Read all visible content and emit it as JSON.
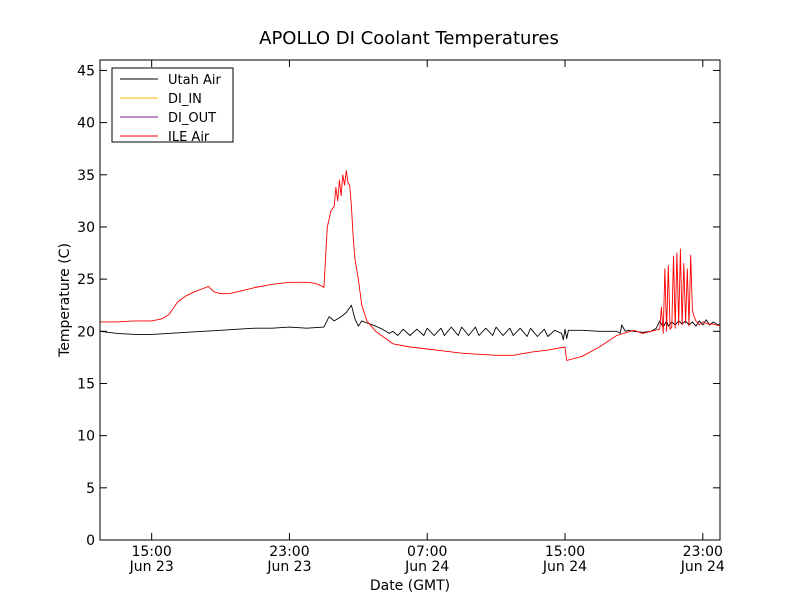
{
  "chart_data": {
    "type": "line",
    "title": "APOLLO DI Coolant Temperatures",
    "xlabel": "Date (GMT)",
    "ylabel": "Temperature (C)",
    "x_unit": "hours since Jun 23 00:00 GMT",
    "xlim": [
      12,
      48
    ],
    "ylim": [
      0,
      46
    ],
    "yticks": [
      0,
      5,
      10,
      15,
      20,
      25,
      30,
      35,
      40,
      45
    ],
    "xticks": [
      {
        "x": 15,
        "time": "15:00",
        "date": "Jun 23"
      },
      {
        "x": 23,
        "time": "23:00",
        "date": "Jun 23"
      },
      {
        "x": 31,
        "time": "07:00",
        "date": "Jun 24"
      },
      {
        "x": 39,
        "time": "15:00",
        "date": "Jun 24"
      },
      {
        "x": 47,
        "time": "23:00",
        "date": "Jun 24"
      }
    ],
    "legend_position": "top-left",
    "series": [
      {
        "name": "Utah Air",
        "color": "#000000",
        "x": [
          12,
          13,
          14,
          15,
          16,
          17,
          18,
          19,
          20,
          21,
          22,
          23,
          24,
          25,
          25.3,
          25.6,
          26.0,
          26.3,
          26.6,
          26.8,
          27.0,
          27.2,
          27.5,
          28.0,
          28.4,
          28.8,
          29.0,
          29.3,
          29.6,
          30.0,
          30.4,
          30.8,
          31.0,
          31.4,
          31.8,
          32.0,
          32.4,
          32.8,
          33.0,
          33.4,
          33.8,
          34.0,
          34.4,
          34.8,
          35.0,
          35.4,
          35.8,
          36.0,
          36.4,
          36.8,
          37.0,
          37.4,
          37.8,
          38.0,
          38.4,
          38.8,
          38.9,
          39.0,
          39.1,
          39.2,
          39.4,
          40.0,
          41.0,
          42.0,
          42.2,
          42.3,
          42.5,
          42.7,
          43.0,
          43.5,
          44.0,
          44.3,
          44.5,
          44.7,
          44.9,
          45.0,
          45.2,
          45.4,
          45.6,
          45.8,
          46.0,
          46.2,
          46.4,
          46.6,
          46.8,
          47.0,
          47.2,
          47.4,
          47.6,
          47.8,
          48.0
        ],
        "y": [
          20.0,
          19.8,
          19.7,
          19.7,
          19.8,
          19.9,
          20.0,
          20.1,
          20.2,
          20.3,
          20.3,
          20.4,
          20.3,
          20.4,
          21.4,
          21.0,
          21.4,
          21.8,
          22.5,
          21.2,
          20.5,
          21.0,
          20.8,
          20.5,
          20.2,
          19.8,
          20.0,
          19.6,
          20.2,
          19.6,
          20.2,
          19.6,
          20.3,
          19.6,
          20.3,
          19.6,
          20.4,
          19.6,
          20.4,
          19.6,
          20.4,
          19.6,
          20.3,
          19.6,
          20.4,
          19.6,
          20.3,
          19.6,
          20.3,
          19.5,
          20.3,
          19.5,
          20.2,
          19.5,
          20.1,
          19.8,
          19.2,
          20.2,
          19.3,
          20.1,
          20.1,
          20.1,
          20.0,
          20.0,
          19.8,
          20.6,
          20.0,
          20.1,
          20.0,
          19.9,
          20.0,
          20.3,
          21.0,
          20.4,
          21.0,
          20.5,
          20.9,
          20.6,
          21.0,
          20.7,
          21.0,
          20.6,
          20.9,
          20.5,
          21.0,
          20.6,
          21.1,
          20.6,
          20.9,
          20.7,
          20.6
        ]
      },
      {
        "name": "DI_IN",
        "color": "#ffb400",
        "x": [],
        "y": []
      },
      {
        "name": "DI_OUT",
        "color": "#7a1f8c",
        "x": [],
        "y": []
      },
      {
        "name": "ILE Air",
        "color": "#ff0000",
        "x": [
          12,
          13,
          14,
          15,
          15.6,
          16.0,
          16.5,
          17.0,
          17.5,
          18.0,
          18.3,
          18.6,
          19.0,
          19.5,
          20.0,
          21.0,
          22.0,
          23.0,
          24.0,
          24.5,
          24.8,
          25.0,
          25.2,
          25.4,
          25.6,
          25.7,
          25.8,
          25.9,
          26.0,
          26.1,
          26.2,
          26.3,
          26.4,
          26.5,
          26.6,
          26.7,
          26.8,
          27.0,
          27.2,
          27.5,
          28.0,
          29.0,
          30.0,
          31.0,
          32.0,
          33.0,
          34.0,
          35.0,
          36.0,
          37.0,
          38.0,
          39.0,
          39.1,
          40.0,
          41.0,
          42.0,
          43.0,
          43.5,
          44.0,
          44.5,
          44.6,
          44.7,
          44.8,
          44.9,
          45.0,
          45.1,
          45.2,
          45.3,
          45.4,
          45.5,
          45.6,
          45.7,
          45.8,
          45.9,
          46.0,
          46.1,
          46.2,
          46.3,
          46.4,
          46.5,
          46.6,
          46.7,
          46.8,
          46.9,
          47.0,
          47.3,
          47.6,
          48.0
        ],
        "y": [
          20.9,
          20.9,
          21.0,
          21.0,
          21.2,
          21.6,
          22.8,
          23.4,
          23.8,
          24.1,
          24.3,
          23.8,
          23.6,
          23.6,
          23.8,
          24.2,
          24.5,
          24.7,
          24.7,
          24.6,
          24.4,
          24.2,
          30.0,
          31.5,
          32.0,
          33.8,
          32.5,
          34.5,
          33.0,
          35.0,
          34.0,
          35.4,
          34.2,
          34.0,
          32.0,
          29.0,
          27.0,
          25.0,
          22.5,
          21.0,
          20.0,
          18.8,
          18.5,
          18.3,
          18.1,
          17.9,
          17.8,
          17.7,
          17.7,
          18.0,
          18.2,
          18.5,
          17.2,
          17.6,
          18.5,
          19.6,
          20.1,
          19.8,
          20.0,
          20.2,
          22.3,
          19.8,
          26.0,
          20.0,
          26.3,
          20.2,
          20.4,
          27.2,
          20.3,
          27.5,
          20.6,
          27.9,
          20.6,
          26.5,
          20.8,
          26.0,
          20.5,
          27.3,
          22.0,
          21.4,
          21.0,
          20.8,
          20.6,
          20.8,
          20.9,
          20.7,
          20.7,
          20.5
        ]
      }
    ]
  }
}
